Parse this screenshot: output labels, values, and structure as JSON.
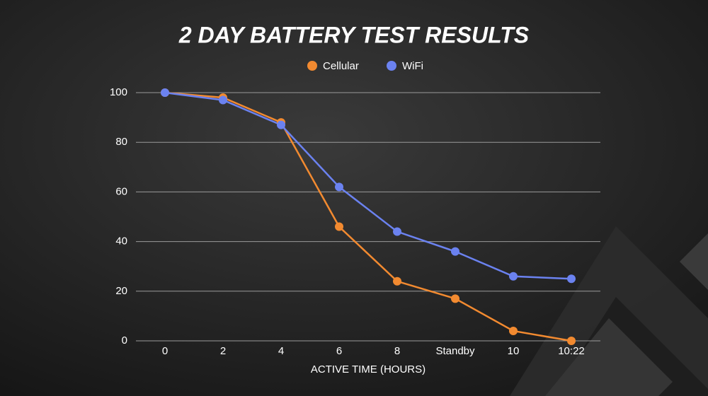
{
  "chart_data": {
    "type": "line",
    "title": "2 DAY BATTERY TEST RESULTS",
    "x_label": "ACTIVE TIME (HOURS)",
    "categories": [
      "0",
      "2",
      "4",
      "6",
      "8",
      "Standby",
      "10",
      "10:22"
    ],
    "series": [
      {
        "name": "Cellular",
        "color": "#f28a30",
        "values": [
          100,
          98,
          88,
          46,
          24,
          17,
          4,
          0
        ]
      },
      {
        "name": "WiFi",
        "color": "#6b82f0",
        "values": [
          100,
          97,
          87,
          62,
          44,
          36,
          26,
          25
        ]
      }
    ],
    "ylim": [
      0,
      100
    ],
    "yticks": [
      0,
      20,
      40,
      60,
      80,
      100
    ],
    "grid": true,
    "legend": "top"
  }
}
